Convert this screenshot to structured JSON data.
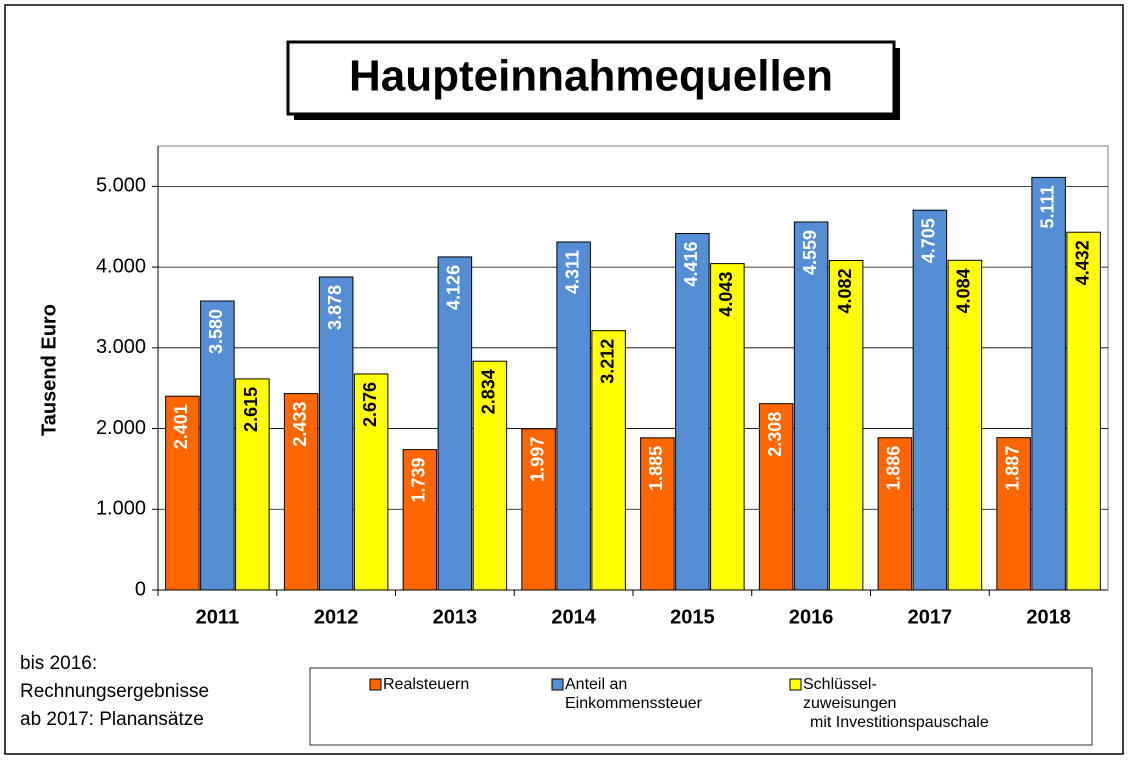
{
  "chart_data": {
    "type": "bar",
    "title": "Haupteinnahmequellen",
    "y_label": "Tausend Euro",
    "categories": [
      "2011",
      "2012",
      "2013",
      "2014",
      "2015",
      "2016",
      "2017",
      "2018"
    ],
    "series": [
      {
        "name": "Realsteuern",
        "color": "#ff6600",
        "values": [
          2401,
          2433,
          1739,
          1997,
          1885,
          2308,
          1886,
          1887
        ],
        "value_labels": [
          "2.401",
          "2.433",
          "1.739",
          "1.997",
          "1.885",
          "2.308",
          "1.886",
          "1.887"
        ]
      },
      {
        "name": "Anteil an\nEinkommenssteuer",
        "color": "#558ed5",
        "values": [
          3580,
          3878,
          4126,
          4311,
          4416,
          4559,
          4705,
          5111
        ],
        "value_labels": [
          "3.580",
          "3.878",
          "4.126",
          "4.311",
          "4.416",
          "4.559",
          "4.705",
          "5.111"
        ]
      },
      {
        "name": "Schlüssel-\nzuweisungen\nmit Investitionspauschale",
        "color": "#ffff00",
        "values": [
          2615,
          2676,
          2834,
          3212,
          4043,
          4082,
          4084,
          4432
        ],
        "value_labels": [
          "2.615",
          "2.676",
          "2.834",
          "3.212",
          "4.043",
          "4.082",
          "4.084",
          "4.432"
        ]
      }
    ],
    "ylim": [
      0,
      5500
    ],
    "yticks": [
      0,
      {
        "value": 1000,
        "label": "1.000"
      },
      {
        "value": 2000,
        "label": "2.000"
      },
      {
        "value": 3000,
        "label": "3.000"
      },
      {
        "value": 4000,
        "label": "4.000"
      },
      {
        "value": 5000,
        "label": "5.000"
      }
    ],
    "grid": true,
    "note": [
      "bis 2016:",
      "Rechnungsergebnisse",
      "ab 2017:  Planansätze"
    ]
  }
}
